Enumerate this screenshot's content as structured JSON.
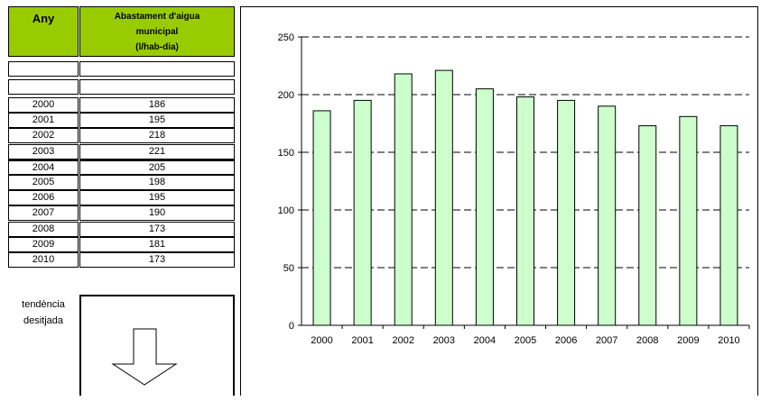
{
  "table": {
    "header_year": "Any",
    "header_value_lines": [
      "Abastament d'aigua",
      "municipal",
      "(l/hab-dia)"
    ],
    "rows": [
      {
        "year": "2000",
        "value": "186"
      },
      {
        "year": "2001",
        "value": "195"
      },
      {
        "year": "2002",
        "value": "218"
      },
      {
        "year": "2003",
        "value": "221"
      },
      {
        "year": "2004",
        "value": "205"
      },
      {
        "year": "2005",
        "value": "198"
      },
      {
        "year": "2006",
        "value": "195"
      },
      {
        "year": "2007",
        "value": "190"
      },
      {
        "year": "2008",
        "value": "173"
      },
      {
        "year": "2009",
        "value": "181"
      },
      {
        "year": "2010",
        "value": "173"
      }
    ],
    "trend_lines": [
      "tendència",
      "desitjada"
    ],
    "trend_direction": "down"
  },
  "chart_data": {
    "type": "bar",
    "categories": [
      "2000",
      "2001",
      "2002",
      "2003",
      "2004",
      "2005",
      "2006",
      "2007",
      "2008",
      "2009",
      "2010"
    ],
    "values": [
      186,
      195,
      218,
      221,
      205,
      198,
      195,
      190,
      173,
      181,
      173
    ],
    "ylim": [
      0,
      250
    ],
    "yticks": [
      0,
      50,
      100,
      150,
      200,
      250
    ],
    "grid": "horizontal dashed",
    "bar_color": "#ccffcc",
    "bar_edge_color": "#000000",
    "title": "",
    "xlabel": "",
    "ylabel": ""
  }
}
